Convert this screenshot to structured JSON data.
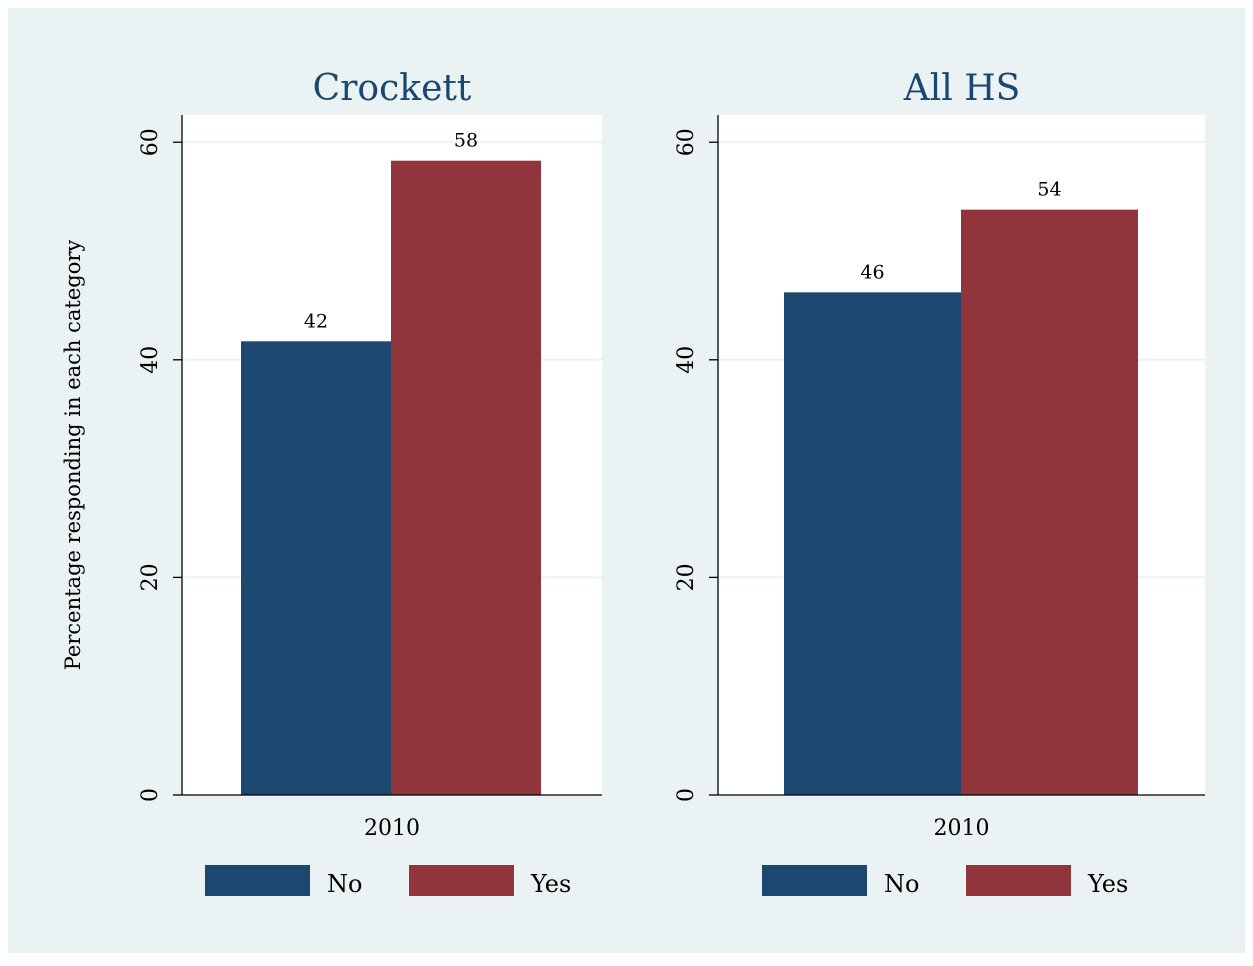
{
  "colors": {
    "page_background": "#ffffff",
    "outer_background": "#eaf2f3",
    "plot_background": "#ffffff",
    "grid": "#eaf2f3",
    "title": "#1a476f",
    "text": "#000000"
  },
  "ylabel": "Percentage responding in each category",
  "chart_data": [
    {
      "type": "bar",
      "title": "Crockett",
      "categories": [
        "2010"
      ],
      "series": [
        {
          "name": "No",
          "values": [
            41.7
          ],
          "value_labels": [
            "42"
          ],
          "color": "#1c4870"
        },
        {
          "name": "Yes",
          "values": [
            58.3
          ],
          "value_labels": [
            "58"
          ],
          "color": "#90353b"
        }
      ],
      "ylabel": "Percentage responding in each category",
      "ylim": [
        0,
        62.5
      ],
      "yticks": [
        "0",
        "20",
        "40",
        "60"
      ],
      "grid": true,
      "legend": "bottom"
    },
    {
      "type": "bar",
      "title": "All HS",
      "categories": [
        "2010"
      ],
      "series": [
        {
          "name": "No",
          "values": [
            46.2
          ],
          "value_labels": [
            "46"
          ],
          "color": "#1c4870"
        },
        {
          "name": "Yes",
          "values": [
            53.8
          ],
          "value_labels": [
            "54"
          ],
          "color": "#90353b"
        }
      ],
      "ylabel": "",
      "ylim": [
        0,
        62.5
      ],
      "yticks": [
        "0",
        "20",
        "40",
        "60"
      ],
      "grid": true,
      "legend": "bottom"
    }
  ]
}
